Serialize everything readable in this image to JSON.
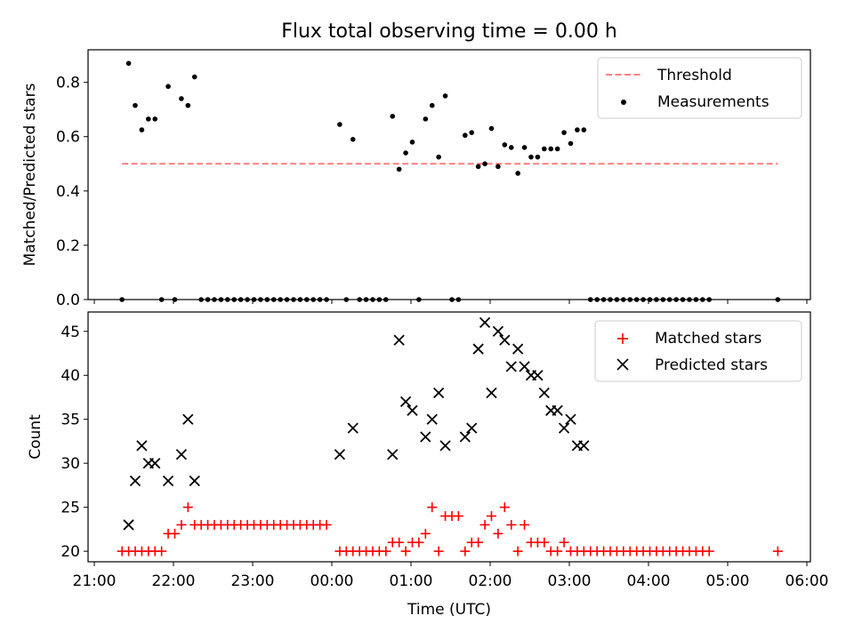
{
  "chart_data": [
    {
      "type": "scatter",
      "title": "Flux total observing time = 0.00 h",
      "xlabel": "",
      "ylabel": "Matched/Predicted stars",
      "xlim": [
        "21:00",
        "06:00"
      ],
      "ylim": [
        0,
        0.92
      ],
      "yticks": [
        0.0,
        0.2,
        0.4,
        0.6,
        0.8
      ],
      "ytick_labels": [
        "0.0",
        "0.2",
        "0.4",
        "0.6",
        "0.8"
      ],
      "legend_position": "top-right",
      "threshold": {
        "name": "Threshold",
        "value": 0.5,
        "x_start": "21:21",
        "x_end": "05:38",
        "color": "#ff7f7f",
        "style": "dashed"
      },
      "series": [
        {
          "name": "Measurements",
          "color": "#000000",
          "marker": "dot",
          "points": [
            [
              "21:21",
              0.0
            ],
            [
              "21:26",
              0.87
            ],
            [
              "21:31",
              0.715
            ],
            [
              "21:36",
              0.625
            ],
            [
              "21:41",
              0.665
            ],
            [
              "21:46",
              0.665
            ],
            [
              "21:51",
              0.0
            ],
            [
              "21:56",
              0.785
            ],
            [
              "22:01",
              0.0
            ],
            [
              "22:06",
              0.74
            ],
            [
              "22:11",
              0.715
            ],
            [
              "22:16",
              0.82
            ],
            [
              "22:21",
              0.0
            ],
            [
              "22:26",
              0.0
            ],
            [
              "22:31",
              0.0
            ],
            [
              "22:36",
              0.0
            ],
            [
              "22:41",
              0.0
            ],
            [
              "22:46",
              0.0
            ],
            [
              "22:51",
              0.0
            ],
            [
              "22:56",
              0.0
            ],
            [
              "23:01",
              0.0
            ],
            [
              "23:06",
              0.0
            ],
            [
              "23:11",
              0.0
            ],
            [
              "23:16",
              0.0
            ],
            [
              "23:21",
              0.0
            ],
            [
              "23:26",
              0.0
            ],
            [
              "23:31",
              0.0
            ],
            [
              "23:36",
              0.0
            ],
            [
              "23:41",
              0.0
            ],
            [
              "23:46",
              0.0
            ],
            [
              "23:51",
              0.0
            ],
            [
              "23:56",
              0.0
            ],
            [
              "00:06",
              0.645
            ],
            [
              "00:11",
              0.0
            ],
            [
              "00:16",
              0.59
            ],
            [
              "00:21",
              0.0
            ],
            [
              "00:26",
              0.0
            ],
            [
              "00:31",
              0.0
            ],
            [
              "00:36",
              0.0
            ],
            [
              "00:41",
              0.0
            ],
            [
              "00:46",
              0.675
            ],
            [
              "00:51",
              0.48
            ],
            [
              "00:56",
              0.54
            ],
            [
              "01:01",
              0.58
            ],
            [
              "01:06",
              0.0
            ],
            [
              "01:11",
              0.665
            ],
            [
              "01:16",
              0.715
            ],
            [
              "01:21",
              0.525
            ],
            [
              "01:26",
              0.75
            ],
            [
              "01:31",
              0.0
            ],
            [
              "01:36",
              0.0
            ],
            [
              "01:41",
              0.605
            ],
            [
              "01:46",
              0.615
            ],
            [
              "01:51",
              0.49
            ],
            [
              "01:56",
              0.5
            ],
            [
              "02:01",
              0.63
            ],
            [
              "02:06",
              0.49
            ],
            [
              "02:11",
              0.57
            ],
            [
              "02:16",
              0.56
            ],
            [
              "02:21",
              0.465
            ],
            [
              "02:26",
              0.56
            ],
            [
              "02:31",
              0.525
            ],
            [
              "02:36",
              0.525
            ],
            [
              "02:41",
              0.555
            ],
            [
              "02:46",
              0.555
            ],
            [
              "02:51",
              0.555
            ],
            [
              "02:56",
              0.615
            ],
            [
              "03:01",
              0.575
            ],
            [
              "03:06",
              0.625
            ],
            [
              "03:11",
              0.625
            ],
            [
              "03:16",
              0.0
            ],
            [
              "03:21",
              0.0
            ],
            [
              "03:26",
              0.0
            ],
            [
              "03:31",
              0.0
            ],
            [
              "03:36",
              0.0
            ],
            [
              "03:41",
              0.0
            ],
            [
              "03:46",
              0.0
            ],
            [
              "03:51",
              0.0
            ],
            [
              "03:56",
              0.0
            ],
            [
              "04:01",
              0.0
            ],
            [
              "04:06",
              0.0
            ],
            [
              "04:11",
              0.0
            ],
            [
              "04:16",
              0.0
            ],
            [
              "04:21",
              0.0
            ],
            [
              "04:26",
              0.0
            ],
            [
              "04:31",
              0.0
            ],
            [
              "04:36",
              0.0
            ],
            [
              "04:41",
              0.0
            ],
            [
              "04:46",
              0.0
            ],
            [
              "05:38",
              0.0
            ]
          ]
        }
      ],
      "legend": [
        "Threshold",
        "Measurements"
      ]
    },
    {
      "type": "scatter",
      "title": "",
      "xlabel": "Time (UTC)",
      "ylabel": "Count",
      "xlim": [
        "21:00",
        "06:00"
      ],
      "ylim": [
        18.8,
        47.2
      ],
      "xticks": [
        "21:00",
        "22:00",
        "23:00",
        "00:00",
        "01:00",
        "02:00",
        "03:00",
        "04:00",
        "05:00",
        "06:00"
      ],
      "yticks": [
        20,
        25,
        30,
        35,
        40,
        45
      ],
      "ytick_labels": [
        "20",
        "25",
        "30",
        "35",
        "40",
        "45"
      ],
      "legend_position": "top-right",
      "series": [
        {
          "name": "Matched stars",
          "color": "#ff0000",
          "marker": "plus",
          "points": [
            [
              "21:21",
              20
            ],
            [
              "21:26",
              20
            ],
            [
              "21:31",
              20
            ],
            [
              "21:36",
              20
            ],
            [
              "21:41",
              20
            ],
            [
              "21:46",
              20
            ],
            [
              "21:51",
              20
            ],
            [
              "21:56",
              22
            ],
            [
              "22:01",
              22
            ],
            [
              "22:06",
              23
            ],
            [
              "22:11",
              25
            ],
            [
              "22:16",
              23
            ],
            [
              "22:21",
              23
            ],
            [
              "22:26",
              23
            ],
            [
              "22:31",
              23
            ],
            [
              "22:36",
              23
            ],
            [
              "22:41",
              23
            ],
            [
              "22:46",
              23
            ],
            [
              "22:51",
              23
            ],
            [
              "22:56",
              23
            ],
            [
              "23:01",
              23
            ],
            [
              "23:06",
              23
            ],
            [
              "23:11",
              23
            ],
            [
              "23:16",
              23
            ],
            [
              "23:21",
              23
            ],
            [
              "23:26",
              23
            ],
            [
              "23:31",
              23
            ],
            [
              "23:36",
              23
            ],
            [
              "23:41",
              23
            ],
            [
              "23:46",
              23
            ],
            [
              "23:51",
              23
            ],
            [
              "23:56",
              23
            ],
            [
              "00:06",
              20
            ],
            [
              "00:11",
              20
            ],
            [
              "00:16",
              20
            ],
            [
              "00:21",
              20
            ],
            [
              "00:26",
              20
            ],
            [
              "00:31",
              20
            ],
            [
              "00:36",
              20
            ],
            [
              "00:41",
              20
            ],
            [
              "00:46",
              21
            ],
            [
              "00:51",
              21
            ],
            [
              "00:56",
              20
            ],
            [
              "01:01",
              21
            ],
            [
              "01:06",
              21
            ],
            [
              "01:11",
              22
            ],
            [
              "01:16",
              25
            ],
            [
              "01:21",
              20
            ],
            [
              "01:26",
              24
            ],
            [
              "01:31",
              24
            ],
            [
              "01:36",
              24
            ],
            [
              "01:41",
              20
            ],
            [
              "01:46",
              21
            ],
            [
              "01:51",
              21
            ],
            [
              "01:56",
              23
            ],
            [
              "02:01",
              24
            ],
            [
              "02:06",
              22
            ],
            [
              "02:11",
              25
            ],
            [
              "02:16",
              23
            ],
            [
              "02:21",
              20
            ],
            [
              "02:26",
              23
            ],
            [
              "02:31",
              21
            ],
            [
              "02:36",
              21
            ],
            [
              "02:41",
              21
            ],
            [
              "02:46",
              20
            ],
            [
              "02:51",
              20
            ],
            [
              "02:56",
              21
            ],
            [
              "03:01",
              20
            ],
            [
              "03:06",
              20
            ],
            [
              "03:11",
              20
            ],
            [
              "03:16",
              20
            ],
            [
              "03:21",
              20
            ],
            [
              "03:26",
              20
            ],
            [
              "03:31",
              20
            ],
            [
              "03:36",
              20
            ],
            [
              "03:41",
              20
            ],
            [
              "03:46",
              20
            ],
            [
              "03:51",
              20
            ],
            [
              "03:56",
              20
            ],
            [
              "04:01",
              20
            ],
            [
              "04:06",
              20
            ],
            [
              "04:11",
              20
            ],
            [
              "04:16",
              20
            ],
            [
              "04:21",
              20
            ],
            [
              "04:26",
              20
            ],
            [
              "04:31",
              20
            ],
            [
              "04:36",
              20
            ],
            [
              "04:41",
              20
            ],
            [
              "04:46",
              20
            ],
            [
              "05:38",
              20
            ]
          ]
        },
        {
          "name": "Predicted stars",
          "color": "#000000",
          "marker": "x",
          "points": [
            [
              "21:26",
              23
            ],
            [
              "21:31",
              28
            ],
            [
              "21:36",
              32
            ],
            [
              "21:41",
              30
            ],
            [
              "21:46",
              30
            ],
            [
              "21:56",
              28
            ],
            [
              "22:06",
              31
            ],
            [
              "22:11",
              35
            ],
            [
              "22:16",
              28
            ],
            [
              "00:06",
              31
            ],
            [
              "00:16",
              34
            ],
            [
              "00:46",
              31
            ],
            [
              "00:51",
              44
            ],
            [
              "00:56",
              37
            ],
            [
              "01:01",
              36
            ],
            [
              "01:11",
              33
            ],
            [
              "01:16",
              35
            ],
            [
              "01:21",
              38
            ],
            [
              "01:26",
              32
            ],
            [
              "01:41",
              33
            ],
            [
              "01:46",
              34
            ],
            [
              "01:51",
              43
            ],
            [
              "01:56",
              46
            ],
            [
              "02:01",
              38
            ],
            [
              "02:06",
              45
            ],
            [
              "02:11",
              44
            ],
            [
              "02:16",
              41
            ],
            [
              "02:21",
              43
            ],
            [
              "02:26",
              41
            ],
            [
              "02:31",
              40
            ],
            [
              "02:36",
              40
            ],
            [
              "02:41",
              38
            ],
            [
              "02:46",
              36
            ],
            [
              "02:51",
              36
            ],
            [
              "02:56",
              34
            ],
            [
              "03:01",
              35
            ],
            [
              "03:06",
              32
            ],
            [
              "03:11",
              32
            ]
          ]
        }
      ],
      "legend": [
        "Matched stars",
        "Predicted stars"
      ]
    }
  ]
}
